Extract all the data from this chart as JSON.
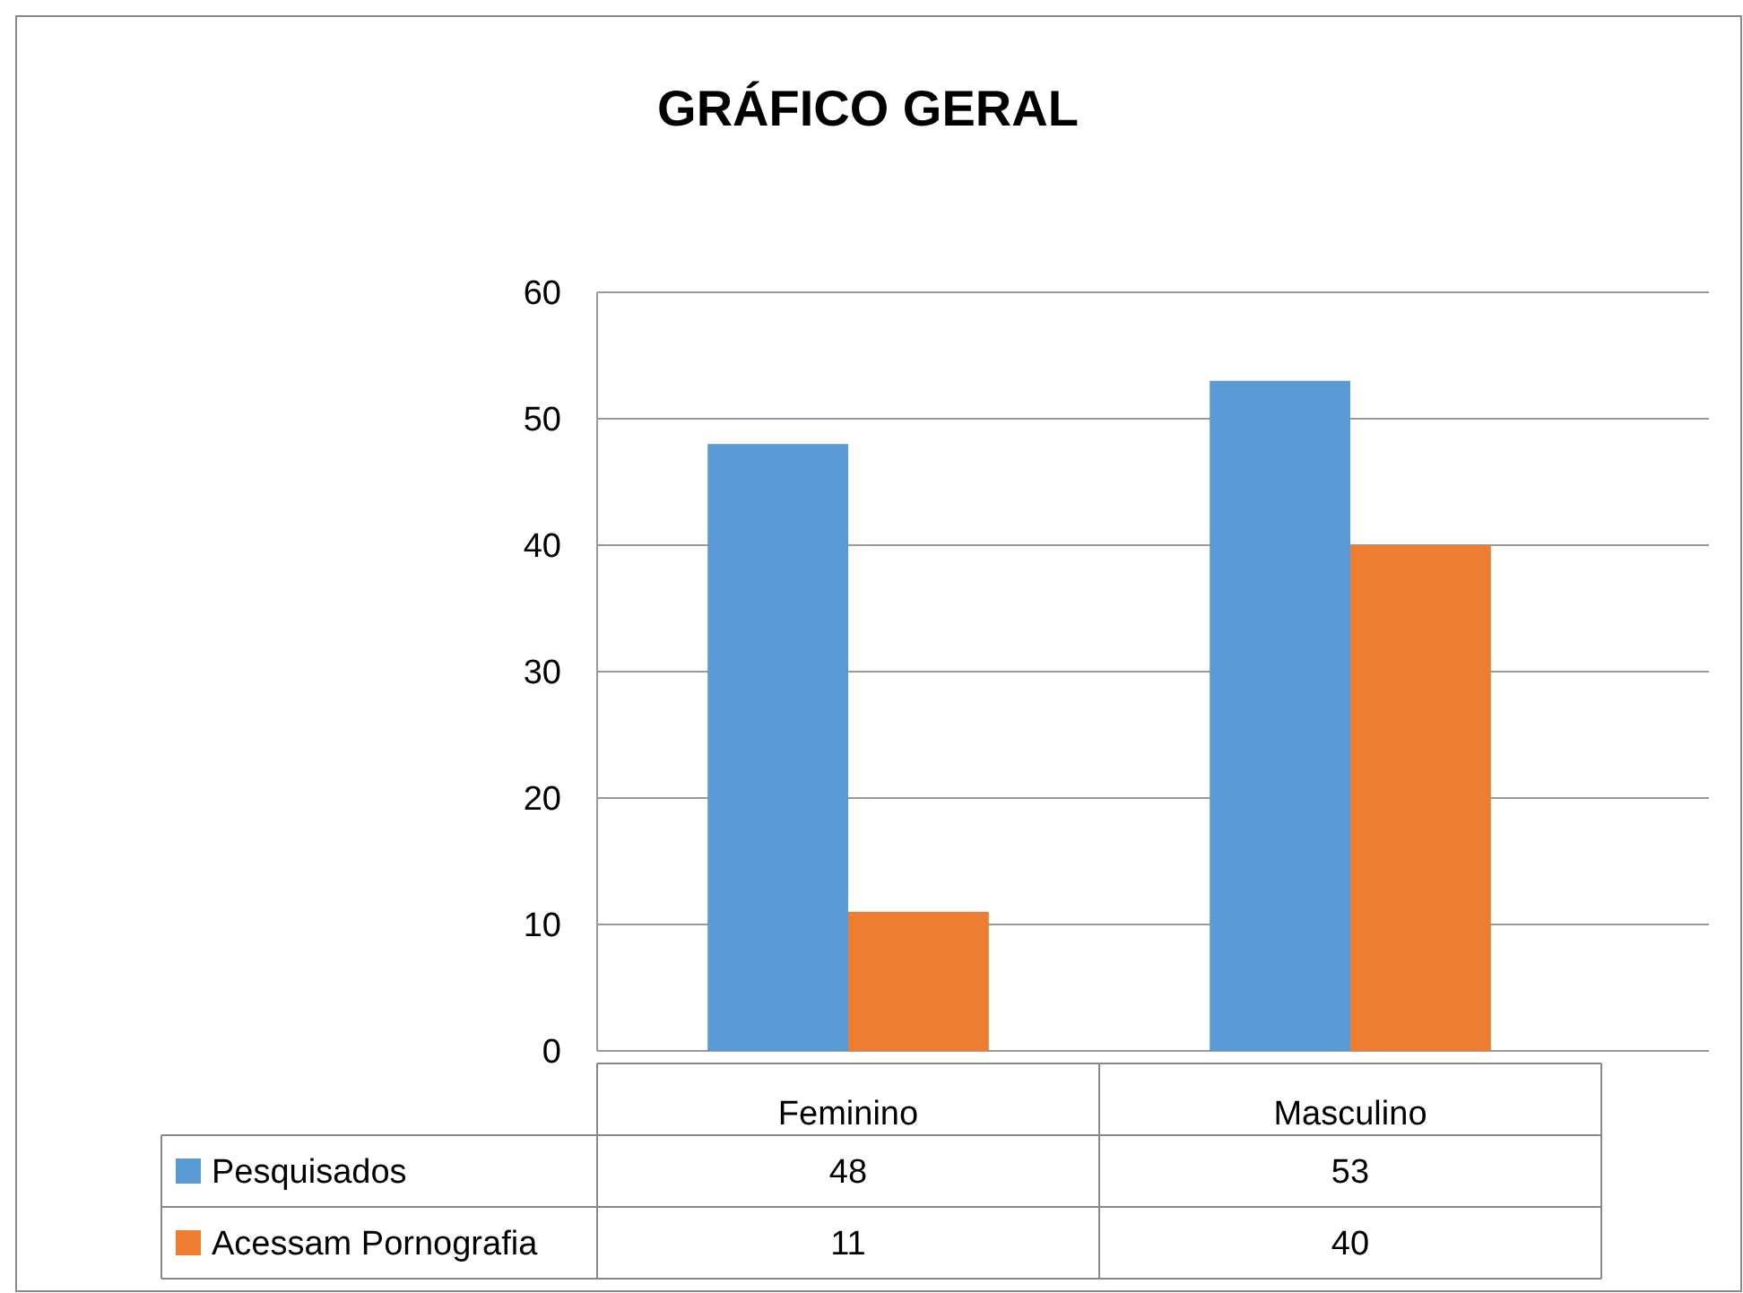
{
  "chart_data": {
    "type": "bar",
    "title": "GRÁFICO GERAL",
    "categories": [
      "Feminino",
      "Masculino"
    ],
    "series": [
      {
        "name": "Pesquisados",
        "color": "#5b9bd5",
        "values": [
          48,
          53
        ]
      },
      {
        "name": "Acessam Pornografia",
        "color": "#ed7d31",
        "values": [
          11,
          40
        ]
      }
    ],
    "ylim": [
      0,
      60
    ],
    "yticks": [
      0,
      10,
      20,
      30,
      40,
      50,
      60
    ],
    "grid": "y",
    "legend": "bottom",
    "data_labels": true
  }
}
